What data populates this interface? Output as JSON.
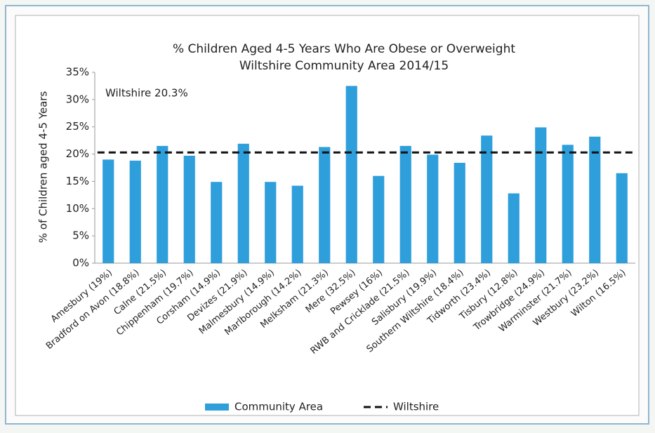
{
  "chart_data": {
    "type": "bar",
    "title": "% Children Aged 4-5 Years Who Are Obese or Overweight",
    "subtitle": "Wiltshire Community Area 2014/15",
    "y_label": "% of Children aged 4-5 Years",
    "annotation": "Wiltshire 20.3%",
    "categories": [
      "Amesbury (19%)",
      "Bradford on Avon (18.8%)",
      "Calne (21.5%)",
      "Chippenham (19.7%)",
      "Corsham (14.9%)",
      "Devizes (21.9%)",
      "Malmesbury (14.9%)",
      "Marlborough (14.2%)",
      "Melksham (21.3%)",
      "Mere (32.5%)",
      "Pewsey (16%)",
      "RWB and Cricklade (21.5%)",
      "Salisbury (19.9%)",
      "Southern Wiltshire (18.4%)",
      "Tidworth (23.4%)",
      "Tisbury (12.8%)",
      "Trowbridge (24.9%)",
      "Warminster (21.7%)",
      "Westbury (23.2%)",
      "Wilton (16.5%)"
    ],
    "series": [
      {
        "name": "Community Area",
        "type": "bar",
        "color": "#2f9fdc",
        "values": [
          19,
          18.8,
          21.5,
          19.7,
          14.9,
          21.9,
          14.9,
          14.2,
          21.3,
          32.5,
          16,
          21.5,
          19.9,
          18.4,
          23.4,
          12.8,
          24.9,
          21.7,
          23.2,
          16.5
        ]
      },
      {
        "name": "Wiltshire",
        "type": "line",
        "color": "#111111",
        "values": [
          20.3,
          20.3,
          20.3,
          20.3,
          20.3,
          20.3,
          20.3,
          20.3,
          20.3,
          20.3,
          20.3,
          20.3,
          20.3,
          20.3,
          20.3,
          20.3,
          20.3,
          20.3,
          20.3,
          20.3
        ]
      }
    ],
    "ylim": [
      0,
      35
    ],
    "yticks": [
      {
        "value": 0,
        "label": "0%"
      },
      {
        "value": 5,
        "label": "5%"
      },
      {
        "value": 10,
        "label": "10%"
      },
      {
        "value": 15,
        "label": "15%"
      },
      {
        "value": 20,
        "label": "20%"
      },
      {
        "value": 25,
        "label": "25%"
      },
      {
        "value": 30,
        "label": "30%"
      },
      {
        "value": 35,
        "label": "35%"
      }
    ],
    "grid": false
  }
}
